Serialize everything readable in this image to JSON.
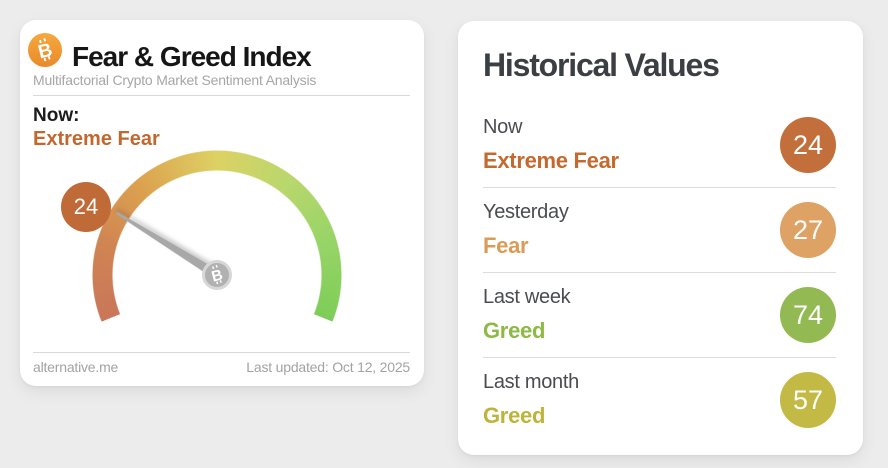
{
  "icons": {
    "bitcoin_glyph": "B"
  },
  "gauge_card": {
    "title": "Fear & Greed Index",
    "subtitle": "Multifactorial Crypto Market Sentiment Analysis",
    "now_label": "Now:",
    "classification": "Extreme Fear",
    "classification_color": "#c2682e",
    "value": "24",
    "value_badge_color": "#bf6a37",
    "source": "alternative.me",
    "last_updated": "Last updated: Oct 12, 2025",
    "gauge": {
      "min": 0,
      "max": 100,
      "value": 24,
      "sweep_deg": 224,
      "gradient": [
        "#c97659",
        "#dca24f",
        "#ddd164",
        "#97d467",
        "#7ecd58"
      ],
      "needle_color": "#a8a8a8"
    }
  },
  "historical_card": {
    "title": "Historical Values",
    "rows": [
      {
        "label": "Now",
        "classification": "Extreme Fear",
        "value": "24",
        "text_color": "#c56a2e",
        "badge_color": "#c36f3b"
      },
      {
        "label": "Yesterday",
        "classification": "Fear",
        "value": "27",
        "text_color": "#da9b57",
        "badge_color": "#dda264"
      },
      {
        "label": "Last week",
        "classification": "Greed",
        "value": "74",
        "text_color": "#8db945",
        "badge_color": "#93ba52"
      },
      {
        "label": "Last month",
        "classification": "Greed",
        "value": "57",
        "text_color": "#beb43a",
        "badge_color": "#c3ba45"
      }
    ]
  }
}
